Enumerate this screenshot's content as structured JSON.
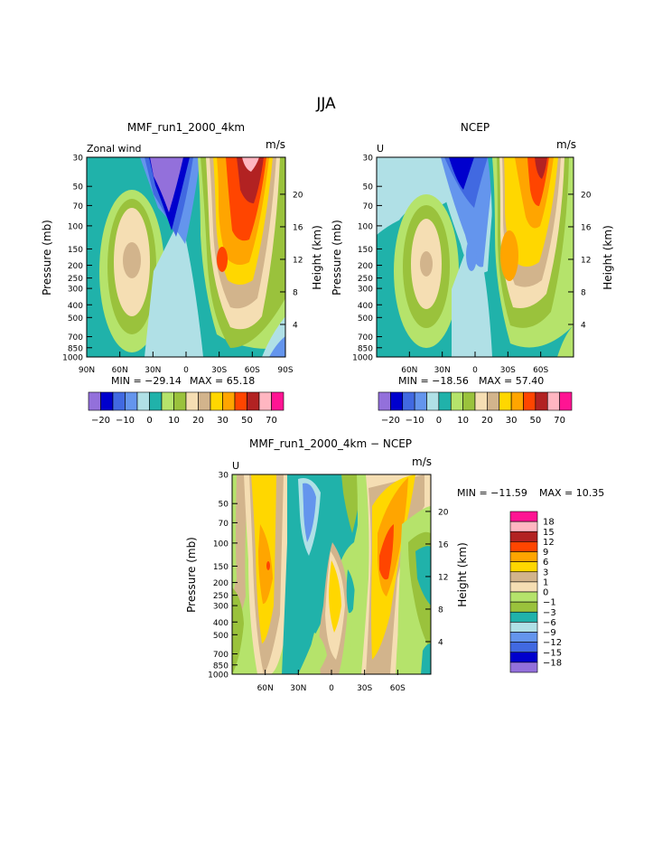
{
  "figure": {
    "title": "JJA"
  },
  "chart_data": [
    {
      "type": "heatmap",
      "title": "MMF_run1_2000_4km",
      "field_label": "Zonal wind",
      "units": "m/s",
      "ylabel_left": "Pressure (mb)",
      "ylabel_right": "Height (km)",
      "y_ticks": [
        "30",
        "50",
        "70",
        "100",
        "150",
        "200",
        "250",
        "300",
        "400",
        "500",
        "700",
        "850",
        "1000"
      ],
      "y_right_ticks": [
        "20",
        "16",
        "12",
        "8",
        "4"
      ],
      "x_ticks": [
        "90N",
        "60N",
        "30N",
        "0",
        "30S",
        "60S",
        "90S"
      ],
      "min_label": "MIN = −29.14",
      "max_label": "MAX =  65.18",
      "color_levels": [
        "−20",
        "−10",
        "0",
        "10",
        "20",
        "30",
        "50",
        "70"
      ]
    },
    {
      "type": "heatmap",
      "title": "NCEP",
      "field_label": "U",
      "units": "m/s",
      "ylabel_left": "Pressure (mb)",
      "ylabel_right": "Height (km)",
      "y_ticks": [
        "30",
        "50",
        "70",
        "100",
        "150",
        "200",
        "250",
        "300",
        "400",
        "500",
        "700",
        "850",
        "1000"
      ],
      "y_right_ticks": [
        "20",
        "16",
        "12",
        "8",
        "4"
      ],
      "x_ticks": [
        "60N",
        "30N",
        "0",
        "30S",
        "60S"
      ],
      "min_label": "MIN = −18.56",
      "max_label": "MAX =  57.40",
      "color_levels": [
        "−20",
        "−10",
        "0",
        "10",
        "20",
        "30",
        "50",
        "70"
      ]
    },
    {
      "type": "heatmap",
      "title": "MMF_run1_2000_4km − NCEP",
      "field_label": "U",
      "units": "m/s",
      "ylabel_left": "Pressure (mb)",
      "ylabel_right": "Height (km)",
      "y_ticks": [
        "30",
        "50",
        "70",
        "100",
        "150",
        "200",
        "250",
        "300",
        "400",
        "500",
        "700",
        "850",
        "1000"
      ],
      "y_right_ticks": [
        "20",
        "16",
        "12",
        "8",
        "4"
      ],
      "x_ticks": [
        "60N",
        "30N",
        "0",
        "30S",
        "60S"
      ],
      "min_label": "MIN = −11.59",
      "max_label": "MAX =  10.35",
      "color_levels": [
        "18",
        "15",
        "12",
        "9",
        "6",
        "3",
        "1",
        "0",
        "−1",
        "−3",
        "−6",
        "−9",
        "−12",
        "−15",
        "−18"
      ]
    }
  ],
  "colors": {
    "full_field_palette": [
      "#9370db",
      "#0000cd",
      "#4169e1",
      "#6495ed",
      "#b0e0e6",
      "#20b2aa",
      "#b5e36b",
      "#9ac23c",
      "#f5deb3",
      "#d2b48c",
      "#ffd700",
      "#ffa500",
      "#ff4500",
      "#b22222",
      "#ffb6c1",
      "#ff1493"
    ],
    "diff_palette": [
      "#ff1493",
      "#ffb6c1",
      "#b22222",
      "#ff4500",
      "#ffa500",
      "#ffd700",
      "#d2b48c",
      "#f5deb3",
      "#b5e36b",
      "#9ac23c",
      "#20b2aa",
      "#b0e0e6",
      "#6495ed",
      "#4169e1",
      "#0000cd",
      "#9370db"
    ]
  }
}
